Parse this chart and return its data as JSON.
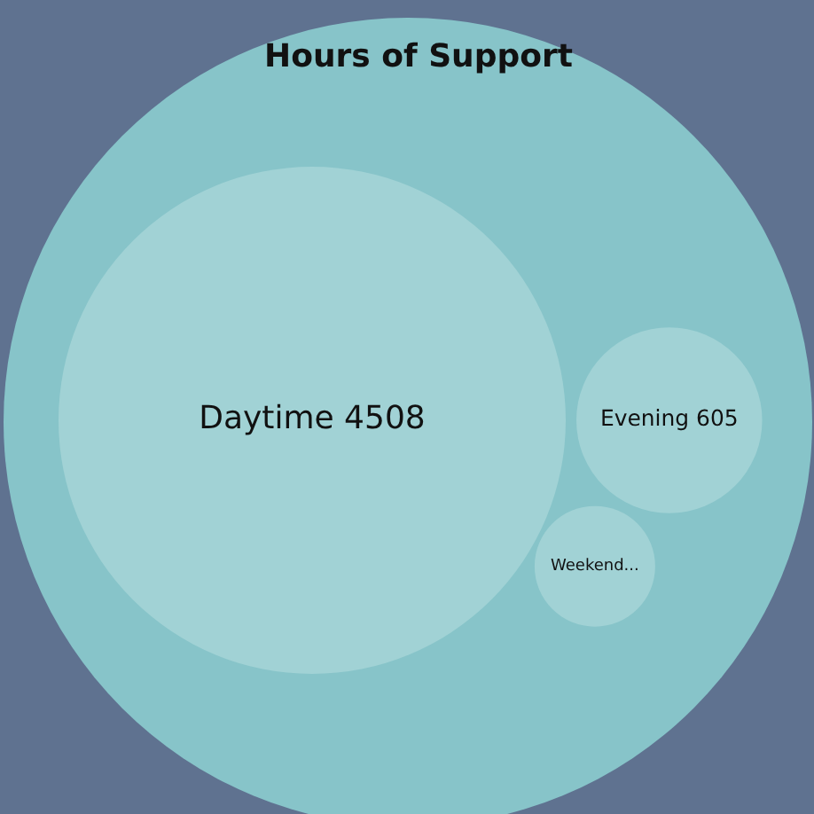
{
  "chart_data": {
    "type": "other",
    "title": "Hours of Support",
    "categories": [
      "Daytime",
      "Evening",
      "Weekend..."
    ],
    "values": [
      4508,
      605,
      null
    ],
    "data_labels": true,
    "colors": [
      "#a1d2d5",
      "#a1d2d5",
      "#a1d2d5"
    ]
  }
}
